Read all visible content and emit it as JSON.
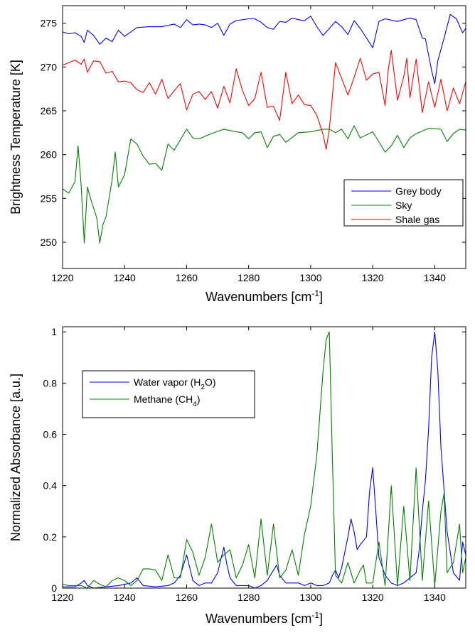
{
  "chart_data": [
    {
      "type": "line",
      "title": "",
      "xlabel": "Wavenumbers [cm⁻¹]",
      "ylabel": "Brightness Temperature [K]",
      "xlim": [
        1220,
        1350
      ],
      "ylim": [
        247,
        277
      ],
      "xticks": [
        1220,
        1240,
        1260,
        1280,
        1300,
        1320,
        1340
      ],
      "yticks": [
        250,
        255,
        260,
        265,
        270,
        275
      ],
      "grid": false,
      "legend_position": "bottom-right",
      "series": [
        {
          "name": "Grey body",
          "color": "#0000ff",
          "x": [
            1220,
            1222,
            1224,
            1226,
            1227,
            1228,
            1230,
            1232,
            1234,
            1236,
            1238,
            1240,
            1244,
            1248,
            1252,
            1256,
            1258,
            1260,
            1262,
            1264,
            1266,
            1268,
            1270,
            1272,
            1274,
            1276,
            1280,
            1282,
            1284,
            1286,
            1288,
            1290,
            1292,
            1294,
            1296,
            1298,
            1300,
            1302,
            1304,
            1306,
            1308,
            1310,
            1312,
            1314,
            1316,
            1318,
            1320,
            1322,
            1324,
            1328,
            1332,
            1334,
            1336,
            1337,
            1339,
            1340,
            1341,
            1343,
            1345,
            1347,
            1349,
            1350
          ],
          "values": [
            274,
            273.8,
            273.9,
            273.5,
            272.8,
            274.2,
            273.6,
            272.6,
            273.3,
            272.9,
            274.2,
            273.5,
            274.5,
            274.6,
            274.6,
            274.9,
            274.5,
            275.4,
            274.8,
            274.9,
            274.8,
            274.5,
            275.0,
            273.6,
            274.9,
            275.3,
            275.5,
            275.5,
            275.1,
            274.5,
            274.3,
            275.2,
            275.1,
            275.6,
            275.4,
            275.3,
            275.8,
            274.6,
            273.6,
            274.4,
            275.2,
            274.6,
            273.7,
            275.3,
            274.4,
            273.3,
            272.2,
            275.2,
            275.5,
            275.2,
            275.6,
            275.4,
            273.3,
            273.2,
            269.6,
            268.1,
            270.7,
            273.3,
            276.0,
            275.5,
            273.9,
            274.4
          ]
        },
        {
          "name": "Sky",
          "color": "#008000",
          "x": [
            1220,
            1222,
            1224,
            1225,
            1226,
            1227,
            1228,
            1229,
            1230,
            1231,
            1232,
            1233,
            1234,
            1236,
            1237,
            1238,
            1240,
            1242,
            1244,
            1246,
            1248,
            1250,
            1252,
            1254,
            1256,
            1258,
            1260,
            1262,
            1264,
            1268,
            1272,
            1276,
            1278,
            1280,
            1282,
            1284,
            1286,
            1288,
            1290,
            1292,
            1296,
            1300,
            1304,
            1306,
            1308,
            1310,
            1312,
            1314,
            1316,
            1320,
            1324,
            1326,
            1328,
            1330,
            1332,
            1334,
            1338,
            1342,
            1344,
            1346,
            1348,
            1350
          ],
          "values": [
            256.1,
            255.6,
            256.9,
            261.0,
            256.4,
            249.9,
            256.3,
            255.0,
            253.9,
            252.8,
            249.9,
            252.0,
            252.9,
            257.2,
            260.3,
            256.3,
            257.7,
            261.8,
            261.2,
            259.8,
            258.9,
            259.0,
            258.2,
            261.2,
            260.5,
            261.7,
            262.9,
            261.9,
            261.8,
            262.4,
            262.9,
            262.6,
            262.5,
            261.8,
            262.5,
            262.6,
            260.8,
            262.1,
            262.3,
            261.4,
            262.5,
            262.6,
            262.9,
            262.9,
            262.5,
            262.9,
            261.8,
            263.3,
            261.9,
            262.6,
            260.3,
            261.0,
            262.2,
            260.8,
            261.9,
            262.4,
            263.0,
            262.9,
            261.5,
            262.4,
            262.9,
            262.8
          ]
        },
        {
          "name": "Shale gas",
          "color": "#ff0000",
          "x": [
            1220,
            1222,
            1224,
            1226,
            1227,
            1228,
            1230,
            1232,
            1234,
            1236,
            1238,
            1240,
            1242,
            1244,
            1246,
            1248,
            1250,
            1252,
            1254,
            1256,
            1258,
            1260,
            1262,
            1264,
            1266,
            1268,
            1270,
            1272,
            1274,
            1276,
            1278,
            1280,
            1282,
            1284,
            1286,
            1288,
            1290,
            1292,
            1294,
            1296,
            1298,
            1300,
            1302,
            1304,
            1305,
            1306,
            1308,
            1310,
            1312,
            1314,
            1316,
            1318,
            1320,
            1322,
            1324,
            1325,
            1326,
            1328,
            1330,
            1331,
            1332,
            1334,
            1336,
            1338,
            1340,
            1342,
            1344,
            1346,
            1348,
            1350
          ],
          "values": [
            270.2,
            270.5,
            270.8,
            270.3,
            270.9,
            269.4,
            270.7,
            270.6,
            269.3,
            269.5,
            268.3,
            268.4,
            268.2,
            267.4,
            267.1,
            268.2,
            266.9,
            268.6,
            266.4,
            267.3,
            268.1,
            265.1,
            266.9,
            267.2,
            266.3,
            267.2,
            265.3,
            267.8,
            265.9,
            269.8,
            267.3,
            265.6,
            266.4,
            269.4,
            265.4,
            265.5,
            263.9,
            269.4,
            265.8,
            266.8,
            265.7,
            265.6,
            264.5,
            262.3,
            260.6,
            262.9,
            270.5,
            268.7,
            266.8,
            268.8,
            271.0,
            268.5,
            269.2,
            269.4,
            265.6,
            269.7,
            271.9,
            266.2,
            268.9,
            271.0,
            266.5,
            270.9,
            264.8,
            268.3,
            265.4,
            268.6,
            265.0,
            267.6,
            265.8,
            268.3
          ]
        }
      ]
    },
    {
      "type": "line",
      "title": "",
      "xlabel": "Wavenumbers [cm⁻¹]",
      "ylabel": "Normalized Absorbance [a.u.]",
      "xlim": [
        1220,
        1350
      ],
      "ylim": [
        0,
        1.02
      ],
      "xticks": [
        1220,
        1240,
        1260,
        1280,
        1300,
        1320,
        1340
      ],
      "yticks": [
        0,
        0.2,
        0.4,
        0.6,
        0.8,
        1
      ],
      "ytick_labels": [
        "0",
        "0.2",
        "0.4",
        "0.6",
        "0.8",
        "1"
      ],
      "grid": false,
      "legend_position": "top-left",
      "series": [
        {
          "name": "Water vapor (H2O)",
          "name_text": "Water vapor (H",
          "name_sub": "2",
          "name_end": "O)",
          "color": "#0000ff",
          "x": [
            1220,
            1224,
            1226,
            1227,
            1228,
            1230,
            1234,
            1238,
            1242,
            1244,
            1246,
            1250,
            1254,
            1256,
            1258,
            1259,
            1260,
            1261,
            1262,
            1264,
            1266,
            1268,
            1270,
            1271,
            1272,
            1273,
            1274,
            1276,
            1280,
            1282,
            1284,
            1286,
            1288,
            1289,
            1290,
            1292,
            1296,
            1298,
            1300,
            1302,
            1304,
            1306,
            1307,
            1308,
            1309,
            1310,
            1312,
            1313,
            1314,
            1315,
            1316,
            1318,
            1319,
            1320,
            1321,
            1322,
            1324,
            1326,
            1328,
            1330,
            1332,
            1334,
            1335,
            1336,
            1337,
            1338,
            1339,
            1340,
            1341,
            1342,
            1344,
            1346,
            1348,
            1349,
            1350
          ],
          "values": [
            0.005,
            0.005,
            0.02,
            0.03,
            0.01,
            0.0,
            0.005,
            0.01,
            0.02,
            0.04,
            0.01,
            0.005,
            0.01,
            0.02,
            0.05,
            0.09,
            0.13,
            0.08,
            0.03,
            0.01,
            0.02,
            0.02,
            0.06,
            0.11,
            0.16,
            0.09,
            0.04,
            0.01,
            0.01,
            0.0,
            0.01,
            0.03,
            0.07,
            0.09,
            0.05,
            0.02,
            0.02,
            0.01,
            0.02,
            0.01,
            0.01,
            0.02,
            0.05,
            0.07,
            0.04,
            0.08,
            0.2,
            0.27,
            0.22,
            0.15,
            0.17,
            0.2,
            0.38,
            0.47,
            0.3,
            0.12,
            0.05,
            0.02,
            0.01,
            0.02,
            0.04,
            0.06,
            0.15,
            0.3,
            0.42,
            0.62,
            0.9,
            1.0,
            0.85,
            0.55,
            0.22,
            0.06,
            0.03,
            0.18,
            0.13
          ]
        },
        {
          "name": "Methane (CH4)",
          "name_text": "Methane (CH",
          "name_sub": "4",
          "name_end": ")",
          "color": "#008000",
          "x": [
            1220,
            1222,
            1224,
            1226,
            1228,
            1230,
            1232,
            1234,
            1236,
            1238,
            1240,
            1242,
            1244,
            1246,
            1248,
            1250,
            1252,
            1254,
            1256,
            1258,
            1260,
            1262,
            1264,
            1266,
            1268,
            1270,
            1272,
            1274,
            1276,
            1278,
            1280,
            1282,
            1284,
            1286,
            1288,
            1290,
            1292,
            1294,
            1296,
            1298,
            1300,
            1302,
            1304,
            1305,
            1306,
            1307,
            1308,
            1310,
            1312,
            1314,
            1316,
            1317,
            1318,
            1320,
            1322,
            1324,
            1326,
            1328,
            1330,
            1332,
            1334,
            1336,
            1338,
            1340,
            1342,
            1343,
            1344,
            1346,
            1348,
            1349,
            1350
          ],
          "values": [
            0.015,
            0.01,
            0.01,
            0.01,
            0.0,
            0.03,
            0.015,
            0.005,
            0.03,
            0.04,
            0.03,
            0.01,
            0.03,
            0.075,
            0.075,
            0.07,
            0.03,
            0.13,
            0.04,
            0.04,
            0.19,
            0.14,
            0.05,
            0.12,
            0.25,
            0.1,
            0.13,
            0.15,
            0.04,
            0.09,
            0.17,
            0.04,
            0.27,
            0.05,
            0.25,
            0.04,
            0.07,
            0.15,
            0.05,
            0.21,
            0.32,
            0.52,
            0.85,
            0.97,
            1.0,
            0.5,
            0.05,
            0.02,
            0.1,
            0.02,
            0.07,
            0.09,
            0.02,
            0.02,
            0.18,
            0.01,
            0.4,
            0.01,
            0.32,
            0.03,
            0.47,
            0.03,
            0.34,
            0.01,
            0.3,
            0.37,
            0.06,
            0.1,
            0.25,
            0.06,
            0.12
          ]
        }
      ]
    }
  ]
}
